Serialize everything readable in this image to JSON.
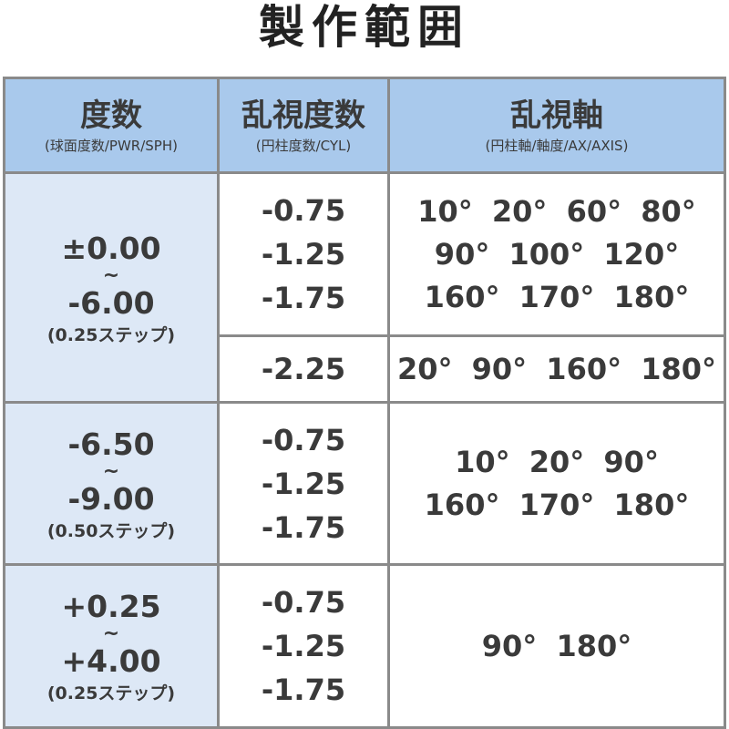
{
  "title": "製作範囲",
  "headers": [
    {
      "main": "度数",
      "sub": "(球面度数/PWR/SPH)"
    },
    {
      "main": "乱視度数",
      "sub": "(円柱度数/CYL)"
    },
    {
      "main": "乱視軸",
      "sub": "(円柱軸/軸度/AX/AXIS)"
    }
  ],
  "rows": [
    {
      "sph_from": "±0.00",
      "tilde": "~",
      "sph_to": "-6.00",
      "step": "(0.25ステップ)",
      "cyl": [
        "-0.75",
        "-1.25",
        "-1.75"
      ],
      "axis": [
        "10°  20°  60°  80°",
        "90°  100°  120°",
        "160°  170°  180°"
      ],
      "cyl2": "-2.25",
      "axis2": "20°  90°  160°  180°"
    },
    {
      "sph_from": "-6.50",
      "tilde": "~",
      "sph_to": "-9.00",
      "step": "(0.50ステップ)",
      "cyl": [
        "-0.75",
        "-1.25",
        "-1.75"
      ],
      "axis": [
        "10°  20°  90°",
        "160°  170°  180°"
      ]
    },
    {
      "sph_from": "+0.25",
      "tilde": "~",
      "sph_to": "+4.00",
      "step": "(0.25ステップ)",
      "cyl": [
        "-0.75",
        "-1.25",
        "-1.75"
      ],
      "axis": [
        "90°  180°"
      ]
    }
  ]
}
